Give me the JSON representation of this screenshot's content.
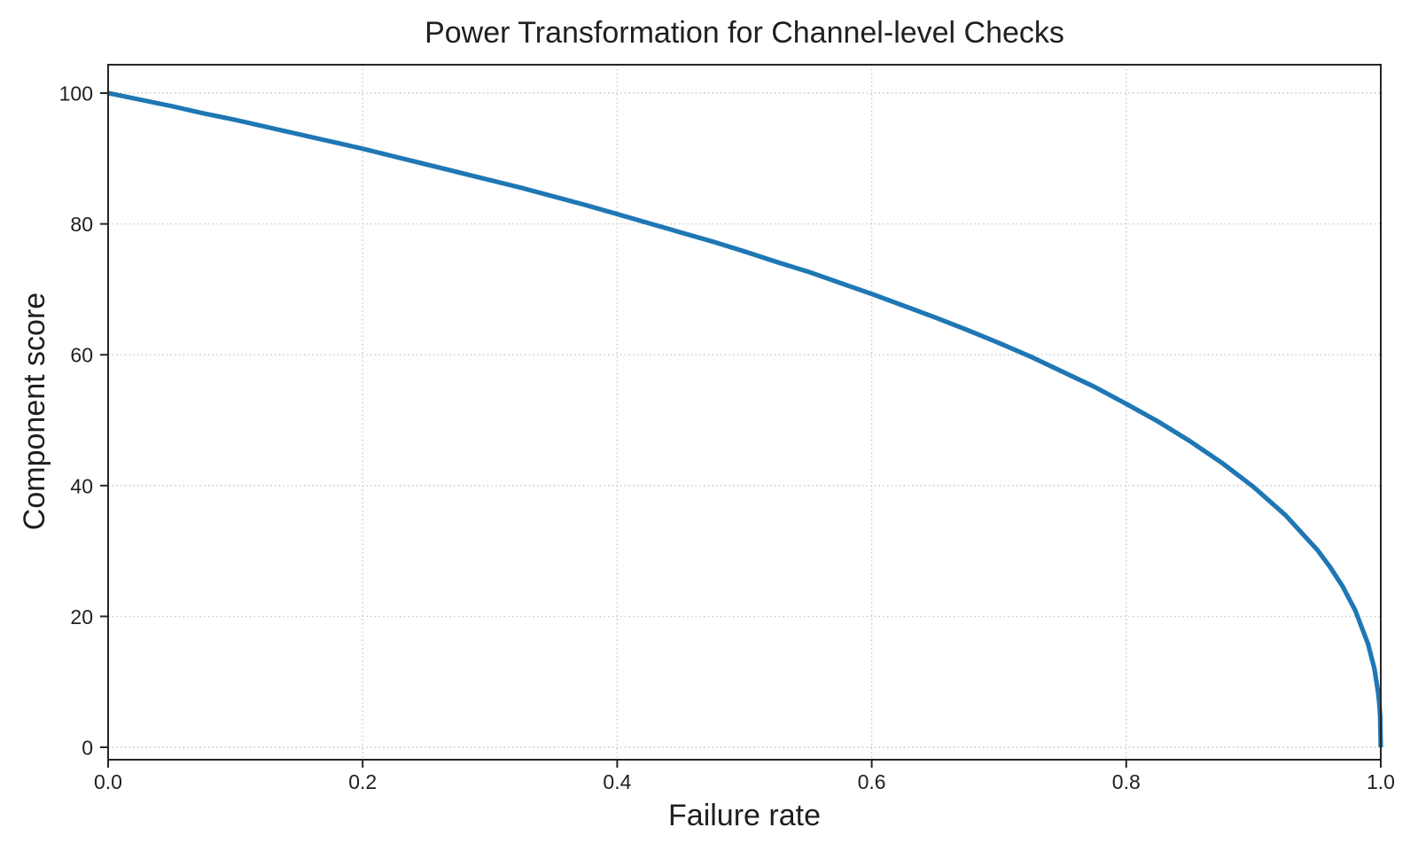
{
  "chart_data": {
    "type": "line",
    "title": "Power Transformation for Channel-level Checks",
    "xlabel": "Failure rate",
    "ylabel": "Component score",
    "xlim": [
      0.0,
      1.0
    ],
    "ylim": [
      0,
      100
    ],
    "x_ticks": [
      0.0,
      0.2,
      0.4,
      0.6,
      0.8,
      1.0
    ],
    "x_tick_labels": [
      "0.0",
      "0.2",
      "0.4",
      "0.6",
      "0.8",
      "1.0"
    ],
    "y_ticks": [
      0,
      20,
      40,
      60,
      80,
      100
    ],
    "y_tick_labels": [
      "0",
      "20",
      "40",
      "60",
      "80",
      "100"
    ],
    "grid": true,
    "grid_style": "dotted",
    "legend": false,
    "series": [
      {
        "name": "Component score",
        "color": "#1f77b4",
        "points": [
          [
            0.0,
            100.0
          ],
          [
            0.025,
            99.0
          ],
          [
            0.05,
            98.0
          ],
          [
            0.075,
            96.9
          ],
          [
            0.1,
            95.9
          ],
          [
            0.125,
            94.8
          ],
          [
            0.15,
            93.7
          ],
          [
            0.175,
            92.6
          ],
          [
            0.2,
            91.5
          ],
          [
            0.225,
            90.3
          ],
          [
            0.25,
            89.1
          ],
          [
            0.275,
            87.9
          ],
          [
            0.3,
            86.7
          ],
          [
            0.325,
            85.5
          ],
          [
            0.35,
            84.2
          ],
          [
            0.375,
            82.9
          ],
          [
            0.4,
            81.5
          ],
          [
            0.425,
            80.1
          ],
          [
            0.45,
            78.7
          ],
          [
            0.475,
            77.3
          ],
          [
            0.5,
            75.8
          ],
          [
            0.525,
            74.2
          ],
          [
            0.55,
            72.7
          ],
          [
            0.575,
            71.0
          ],
          [
            0.6,
            69.3
          ],
          [
            0.625,
            67.5
          ],
          [
            0.65,
            65.7
          ],
          [
            0.675,
            63.8
          ],
          [
            0.7,
            61.8
          ],
          [
            0.725,
            59.7
          ],
          [
            0.75,
            57.4
          ],
          [
            0.775,
            55.1
          ],
          [
            0.8,
            52.5
          ],
          [
            0.825,
            49.8
          ],
          [
            0.85,
            46.8
          ],
          [
            0.875,
            43.5
          ],
          [
            0.9,
            39.8
          ],
          [
            0.925,
            35.5
          ],
          [
            0.95,
            30.2
          ],
          [
            0.96,
            27.6
          ],
          [
            0.97,
            24.6
          ],
          [
            0.98,
            20.9
          ],
          [
            0.99,
            15.8
          ],
          [
            0.995,
            12.0
          ],
          [
            0.998,
            8.3
          ],
          [
            0.999,
            6.3
          ],
          [
            0.9995,
            4.8
          ],
          [
            1.0,
            0.0
          ]
        ]
      }
    ]
  },
  "colors": {
    "line": "#1f77b4",
    "grid": "#c7c7c7",
    "axis": "#262626",
    "text": "#1f1f1f",
    "background": "#ffffff"
  }
}
